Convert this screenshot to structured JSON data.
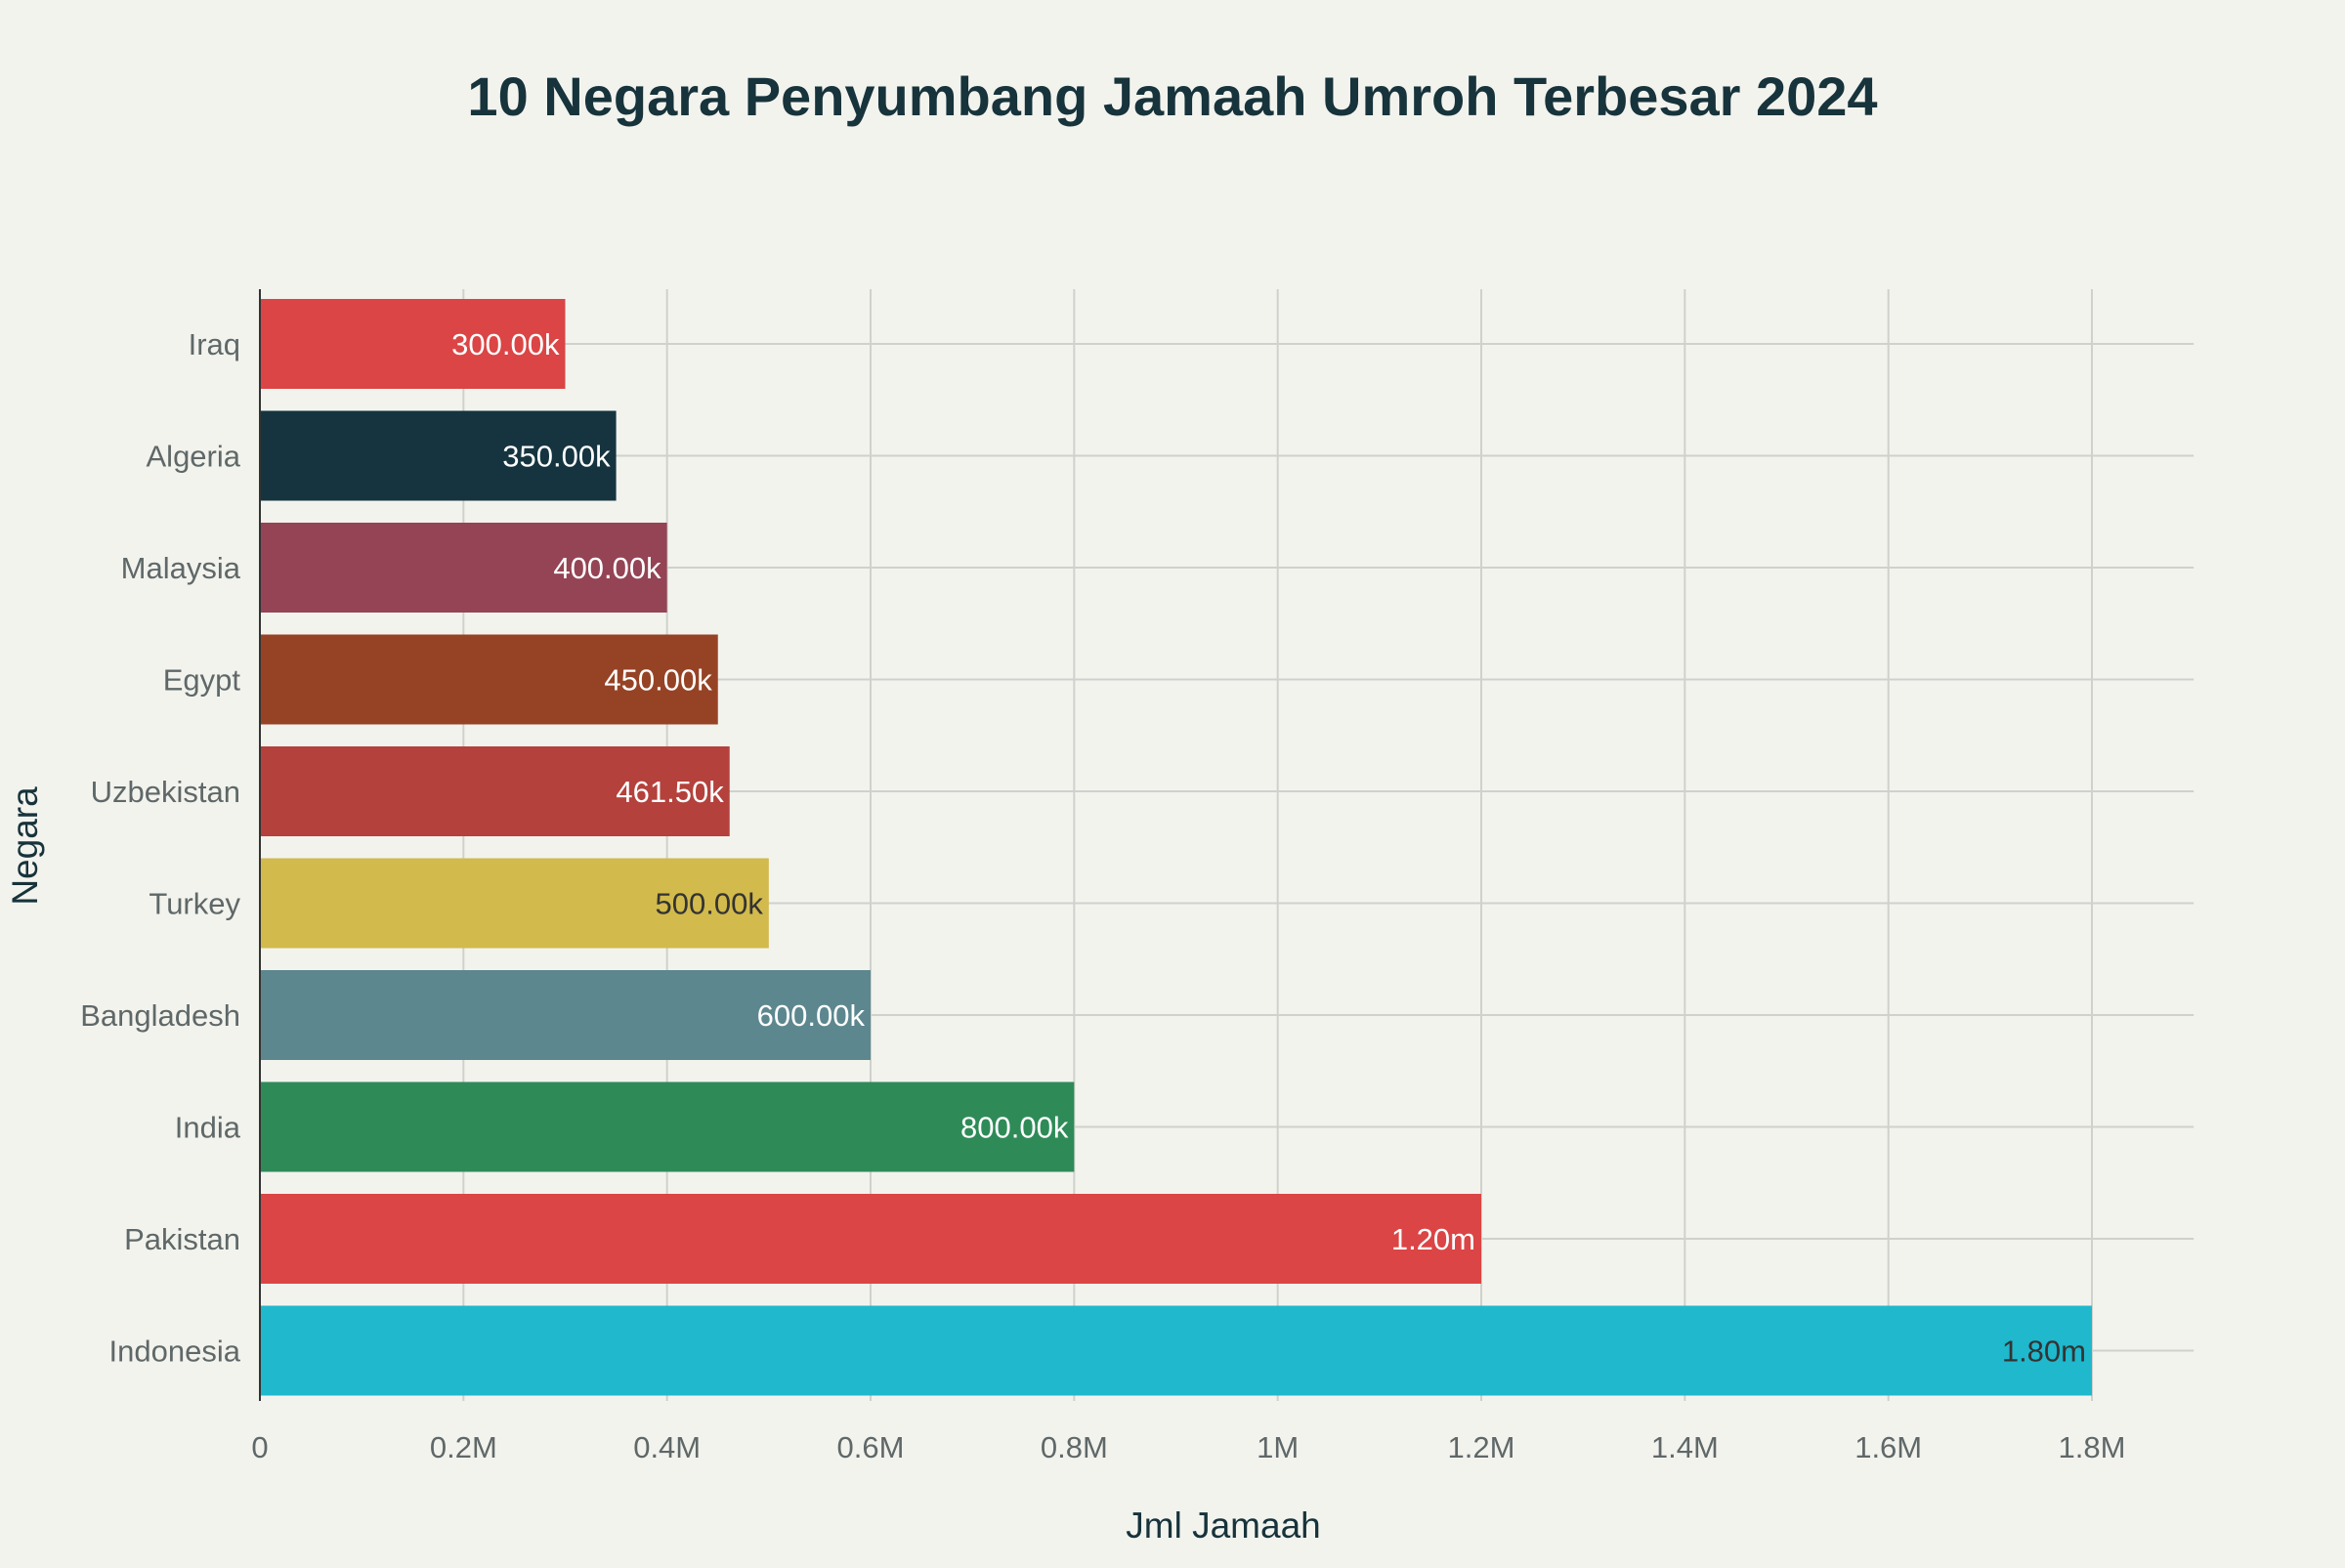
{
  "chart_data": {
    "type": "bar",
    "orientation": "horizontal",
    "title": "10 Negara Penyumbang Jamaah Umroh Terbesar 2024",
    "xlabel": "Jml Jamaah",
    "ylabel": "Negara",
    "xlim": [
      0,
      1900000
    ],
    "xticks": [
      0,
      200000,
      400000,
      600000,
      800000,
      1000000,
      1200000,
      1400000,
      1600000,
      1800000
    ],
    "xtick_labels": [
      "0",
      "0.2M",
      "0.4M",
      "0.6M",
      "0.8M",
      "1M",
      "1.2M",
      "1.4M",
      "1.6M",
      "1.8M"
    ],
    "grid": true,
    "categories": [
      "Iraq",
      "Algeria",
      "Malaysia",
      "Egypt",
      "Uzbekistan",
      "Turkey",
      "Bangladesh",
      "India",
      "Pakistan",
      "Indonesia"
    ],
    "values": [
      300000,
      350000,
      400000,
      450000,
      461500,
      500000,
      600000,
      800000,
      1200000,
      1800000
    ],
    "data_labels": [
      "300.00k",
      "350.00k",
      "400.00k",
      "450.00k",
      "461.50k",
      "500.00k",
      "600.00k",
      "800.00k",
      "1.20m",
      "1.80m"
    ],
    "colors": [
      "#db4545",
      "#153440",
      "#944454",
      "#964325",
      "#b4413c",
      "#d2ba4c",
      "#5d878f",
      "#2e8b57",
      "#db4545",
      "#1fb8cd"
    ],
    "label_colors": [
      "#ffffff",
      "#ffffff",
      "#ffffff",
      "#ffffff",
      "#ffffff",
      "#333333",
      "#ffffff",
      "#ffffff",
      "#ffffff",
      "#333333"
    ]
  }
}
